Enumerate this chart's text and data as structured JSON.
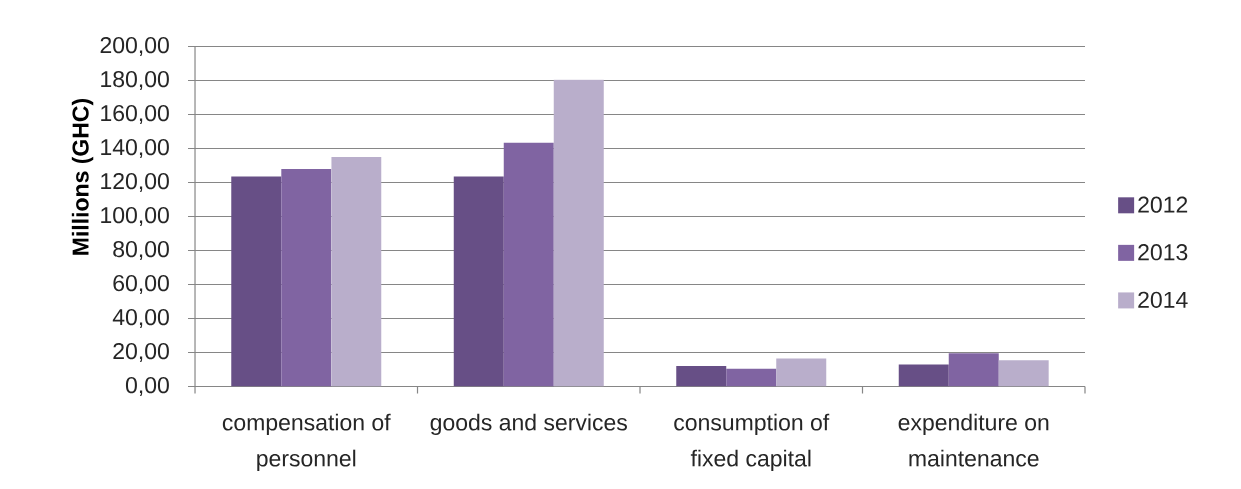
{
  "chart_data": {
    "type": "bar",
    "ylabel": "Millions (GHC)",
    "categories": [
      "compensation of personnel",
      "goods and services",
      "consumption of fixed capital",
      "expenditure on maintenance"
    ],
    "series": [
      {
        "name": "2012",
        "color": "#674f86",
        "values": [
          123.5,
          123.5,
          12,
          13
        ]
      },
      {
        "name": "2013",
        "color": "#8064a2",
        "values": [
          128,
          143.5,
          10.5,
          19.5
        ]
      },
      {
        "name": "2014",
        "color": "#b9aecb",
        "values": [
          135,
          180.5,
          16.5,
          15.5
        ]
      }
    ],
    "ylim": [
      0,
      200
    ],
    "yticks": [
      {
        "value": 0,
        "label": "0,00"
      },
      {
        "value": 20,
        "label": "20,00"
      },
      {
        "value": 40,
        "label": "40,00"
      },
      {
        "value": 60,
        "label": "60,00"
      },
      {
        "value": 80,
        "label": "80,00"
      },
      {
        "value": 100,
        "label": "100,00"
      },
      {
        "value": 120,
        "label": "120,00"
      },
      {
        "value": 140,
        "label": "140,00"
      },
      {
        "value": 160,
        "label": "160,00"
      },
      {
        "value": 180,
        "label": "180,00"
      },
      {
        "value": 200,
        "label": "200,00"
      }
    ],
    "grid": "y",
    "legend": "right"
  }
}
